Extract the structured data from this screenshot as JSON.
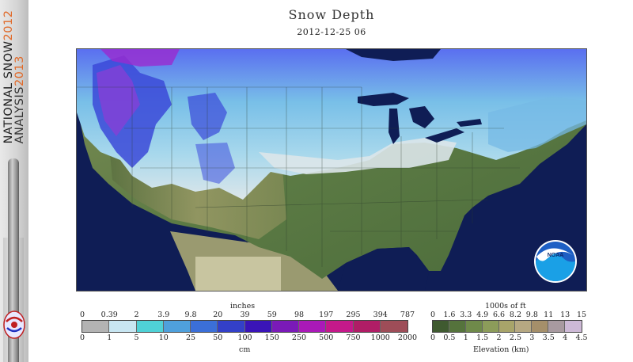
{
  "banner": {
    "line1_text": "NATIONAL SNOW",
    "line1_year": "2012",
    "line2_text": "ANALYSIS",
    "line2_year": "2013",
    "logo_icon": "nohrsc-logo-icon"
  },
  "title": "Snow Depth",
  "timestamp": "2012-12-25 06",
  "noaa_logo_text": "NOAA",
  "colors": {
    "ocean": "#0f1d55",
    "land": "#5e7a46",
    "mexico_land": "#c8c5a0",
    "snow_light": "#d8e3ea",
    "snow_blue": "#76b9e6",
    "snow_deep": "#3b49d8",
    "snow_purple": "#8a3dd6"
  },
  "snow_legend": {
    "units_top": "inches",
    "units_bottom": "cm",
    "inches": [
      "0",
      "0.39",
      "2",
      "3.9",
      "9.8",
      "20",
      "39",
      "59",
      "98",
      "197",
      "295",
      "394",
      "787"
    ],
    "cm": [
      "0",
      "1",
      "5",
      "10",
      "25",
      "50",
      "100",
      "150",
      "250",
      "500",
      "750",
      "1000",
      "2000"
    ],
    "colors": [
      "#b3b3b3",
      "#c8e6f2",
      "#4fd1d6",
      "#4fa0dc",
      "#3b6fd8",
      "#3340c8",
      "#3a14b8",
      "#7a1ab8",
      "#aa19b8",
      "#c4198a",
      "#b01d66",
      "#9e4d58"
    ]
  },
  "elev_legend": {
    "units_top": "1000s of ft",
    "units_bottom": "Elevation (km)",
    "feet": [
      "0",
      "1.6",
      "3.3",
      "4.9",
      "6.6",
      "8.2",
      "9.8",
      "11",
      "13",
      "15"
    ],
    "km": [
      "0",
      "0.5",
      "1",
      "1.5",
      "2",
      "2.5",
      "3",
      "3.5",
      "4",
      "4.5"
    ],
    "colors": [
      "#3f5a30",
      "#55733c",
      "#6f8a4a",
      "#8c9c5a",
      "#a8a46a",
      "#b6a882",
      "#a58f6a",
      "#a89aa0",
      "#cdb9d6"
    ]
  }
}
